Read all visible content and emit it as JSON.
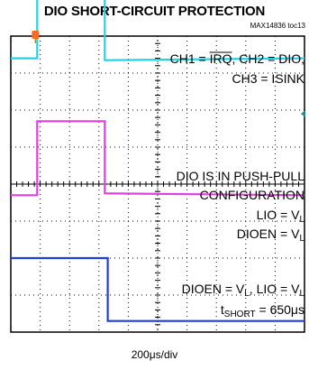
{
  "header": {
    "title": "DIO SHORT-CIRCUIT PROTECTION",
    "code": "MAX14836 toc13"
  },
  "footer": {
    "timebase": "200μs/div"
  },
  "colors": {
    "ch1": "#22d3e6",
    "ch2": "#e040e0",
    "ch3": "#1f3fd6",
    "trigger": "#f07020",
    "grid": "#000000",
    "background": "#ffffff"
  },
  "chart_data": {
    "type": "line",
    "divisions": {
      "x": 10,
      "y": 8
    },
    "x_per_div": "200μs/div",
    "series": [
      {
        "name": "CH1 = IRQ",
        "x": [
          0,
          0.9,
          0.9,
          3.2,
          3.2,
          10
        ],
        "y": [
          7.4,
          7.4,
          9.4,
          9.4,
          7.35,
          7.4
        ]
      },
      {
        "name": "CH2 = DIO",
        "x": [
          0,
          0.9,
          0.9,
          3.2,
          3.2,
          10
        ],
        "y": [
          3.7,
          3.7,
          5.7,
          5.7,
          3.75,
          3.7
        ]
      },
      {
        "name": "CH3 = ISINK",
        "x": [
          0,
          3.3,
          3.3,
          10
        ],
        "y": [
          2.0,
          2.0,
          0.3,
          0.3
        ]
      }
    ],
    "annotations": [
      "CH1 = IRQ, CH2 = DIO,",
      "CH3 = ISINK",
      "DIO IS IN PUSH-PULL",
      "CONFIGURATION",
      "LIO = V",
      "L",
      "DIOEN = V",
      "L",
      "DIOEN = V",
      "L",
      ", LIO = V",
      "L",
      "t",
      "SHORT",
      " = 650μs"
    ]
  }
}
